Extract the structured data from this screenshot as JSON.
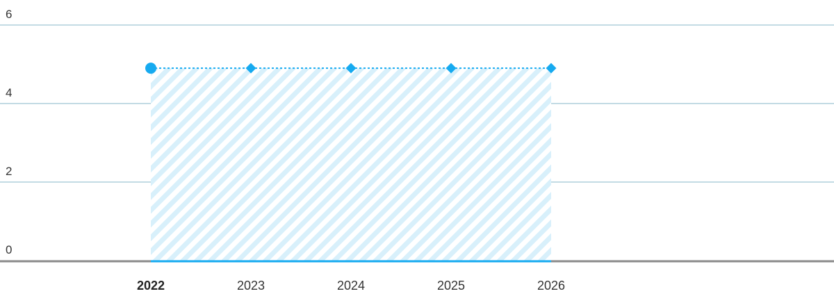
{
  "chart_data": {
    "type": "area",
    "title": "",
    "xlabel": "",
    "ylabel": "",
    "categories": [
      "2022",
      "2023",
      "2024",
      "2025",
      "2026"
    ],
    "highlighted_category": "2022",
    "series": [
      {
        "values": [
          4.9,
          4.9,
          4.9,
          4.9,
          4.9
        ]
      }
    ],
    "first_point_marker": "circle",
    "other_point_marker": "diamond",
    "line_style": "dotted",
    "fill_style": "diagonal-hatch",
    "ylim": [
      0,
      6
    ],
    "yticks": [
      0,
      2,
      4,
      6
    ],
    "grid": true,
    "legend": "none"
  },
  "colors": {
    "series": "#16aaf0",
    "hatch": "#d8f0fb",
    "grid": "#c3dbe4",
    "axis": "#8a8a8a",
    "text": "#333333"
  }
}
